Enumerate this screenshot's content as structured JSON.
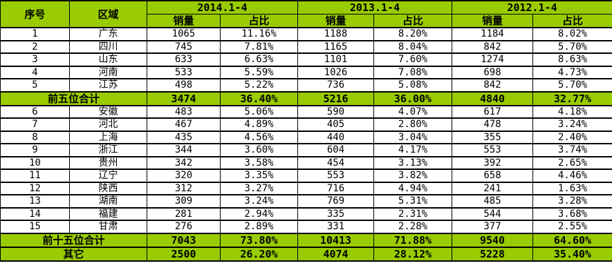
{
  "accent_color": "#99cc00",
  "table": {
    "no_label": "序号",
    "region_label": "区域",
    "periods": [
      {
        "label": "2014.1-4",
        "sales_label": "销量",
        "share_label": "占比"
      },
      {
        "label": "2013.1-4",
        "sales_label": "销量",
        "share_label": "占比"
      },
      {
        "label": "2012.1-4",
        "sales_label": "销量",
        "share_label": "占比"
      }
    ],
    "rows": [
      {
        "type": "data",
        "no": "1",
        "region": "广东",
        "values": [
          "1065",
          "11.16%",
          "1188",
          "8.20%",
          "1184",
          "8.02%"
        ]
      },
      {
        "type": "data",
        "no": "2",
        "region": "四川",
        "values": [
          "745",
          "7.81%",
          "1165",
          "8.04%",
          "842",
          "5.70%"
        ]
      },
      {
        "type": "data",
        "no": "3",
        "region": "山东",
        "values": [
          "633",
          "6.63%",
          "1101",
          "7.60%",
          "1274",
          "8.63%"
        ]
      },
      {
        "type": "data",
        "no": "4",
        "region": "河南",
        "values": [
          "533",
          "5.59%",
          "1026",
          "7.08%",
          "698",
          "4.73%"
        ]
      },
      {
        "type": "data",
        "no": "5",
        "region": "江苏",
        "values": [
          "498",
          "5.22%",
          "736",
          "5.08%",
          "842",
          "5.70%"
        ]
      },
      {
        "type": "summary",
        "label": "前五位合计",
        "values": [
          "3474",
          "36.40%",
          "5216",
          "36.00%",
          "4840",
          "32.77%"
        ]
      },
      {
        "type": "data",
        "no": "6",
        "region": "安徽",
        "values": [
          "483",
          "5.06%",
          "590",
          "4.07%",
          "617",
          "4.18%"
        ]
      },
      {
        "type": "data",
        "no": "7",
        "region": "河北",
        "values": [
          "467",
          "4.89%",
          "405",
          "2.80%",
          "478",
          "3.24%"
        ]
      },
      {
        "type": "data",
        "no": "8",
        "region": "上海",
        "values": [
          "435",
          "4.56%",
          "440",
          "3.04%",
          "355",
          "2.40%"
        ]
      },
      {
        "type": "data",
        "no": "9",
        "region": "浙江",
        "values": [
          "344",
          "3.60%",
          "604",
          "4.17%",
          "553",
          "3.74%"
        ]
      },
      {
        "type": "data",
        "no": "10",
        "region": "贵州",
        "values": [
          "342",
          "3.58%",
          "454",
          "3.13%",
          "392",
          "2.65%"
        ]
      },
      {
        "type": "data",
        "no": "11",
        "region": "辽宁",
        "values": [
          "320",
          "3.35%",
          "553",
          "3.82%",
          "658",
          "4.46%"
        ]
      },
      {
        "type": "data",
        "no": "12",
        "region": "陕西",
        "values": [
          "312",
          "3.27%",
          "716",
          "4.94%",
          "241",
          "1.63%"
        ]
      },
      {
        "type": "data",
        "no": "13",
        "region": "湖南",
        "values": [
          "309",
          "3.24%",
          "769",
          "5.31%",
          "485",
          "3.28%"
        ]
      },
      {
        "type": "data",
        "no": "14",
        "region": "福建",
        "values": [
          "281",
          "2.94%",
          "335",
          "2.31%",
          "544",
          "3.68%"
        ]
      },
      {
        "type": "data",
        "no": "15",
        "region": "甘肃",
        "values": [
          "276",
          "2.89%",
          "331",
          "2.28%",
          "377",
          "2.55%"
        ]
      },
      {
        "type": "summary",
        "label": "前十五位合计",
        "values": [
          "7043",
          "73.80%",
          "10413",
          "71.88%",
          "9540",
          "64.60%"
        ]
      },
      {
        "type": "summary",
        "label": "其它",
        "values": [
          "2500",
          "26.20%",
          "4074",
          "28.12%",
          "5228",
          "35.40%"
        ]
      }
    ]
  },
  "chart_data": {
    "type": "table",
    "title": "",
    "columns": [
      "序号",
      "区域",
      "2014.1-4 销量",
      "2014.1-4 占比",
      "2013.1-4 销量",
      "2013.1-4 占比",
      "2012.1-4 销量",
      "2012.1-4 占比"
    ],
    "rows": [
      [
        "1",
        "广东",
        "1065",
        "11.16%",
        "1188",
        "8.20%",
        "1184",
        "8.02%"
      ],
      [
        "2",
        "四川",
        "745",
        "7.81%",
        "1165",
        "8.04%",
        "842",
        "5.70%"
      ],
      [
        "3",
        "山东",
        "633",
        "6.63%",
        "1101",
        "7.60%",
        "1274",
        "8.63%"
      ],
      [
        "4",
        "河南",
        "533",
        "5.59%",
        "1026",
        "7.08%",
        "698",
        "4.73%"
      ],
      [
        "5",
        "江苏",
        "498",
        "5.22%",
        "736",
        "5.08%",
        "842",
        "5.70%"
      ],
      [
        "",
        "前五位合计",
        "3474",
        "36.40%",
        "5216",
        "36.00%",
        "4840",
        "32.77%"
      ],
      [
        "6",
        "安徽",
        "483",
        "5.06%",
        "590",
        "4.07%",
        "617",
        "4.18%"
      ],
      [
        "7",
        "河北",
        "467",
        "4.89%",
        "405",
        "2.80%",
        "478",
        "3.24%"
      ],
      [
        "8",
        "上海",
        "435",
        "4.56%",
        "440",
        "3.04%",
        "355",
        "2.40%"
      ],
      [
        "9",
        "浙江",
        "344",
        "3.60%",
        "604",
        "4.17%",
        "553",
        "3.74%"
      ],
      [
        "10",
        "贵州",
        "342",
        "3.58%",
        "454",
        "3.13%",
        "392",
        "2.65%"
      ],
      [
        "11",
        "辽宁",
        "320",
        "3.35%",
        "553",
        "3.82%",
        "658",
        "4.46%"
      ],
      [
        "12",
        "陕西",
        "312",
        "3.27%",
        "716",
        "4.94%",
        "241",
        "1.63%"
      ],
      [
        "13",
        "湖南",
        "309",
        "3.24%",
        "769",
        "5.31%",
        "485",
        "3.28%"
      ],
      [
        "14",
        "福建",
        "281",
        "2.94%",
        "335",
        "2.31%",
        "544",
        "3.68%"
      ],
      [
        "15",
        "甘肃",
        "276",
        "2.89%",
        "331",
        "2.28%",
        "377",
        "2.55%"
      ],
      [
        "",
        "前十五位合计",
        "7043",
        "73.80%",
        "10413",
        "71.88%",
        "9540",
        "64.60%"
      ],
      [
        "",
        "其它",
        "2500",
        "26.20%",
        "4074",
        "28.12%",
        "5228",
        "35.40%"
      ]
    ]
  }
}
